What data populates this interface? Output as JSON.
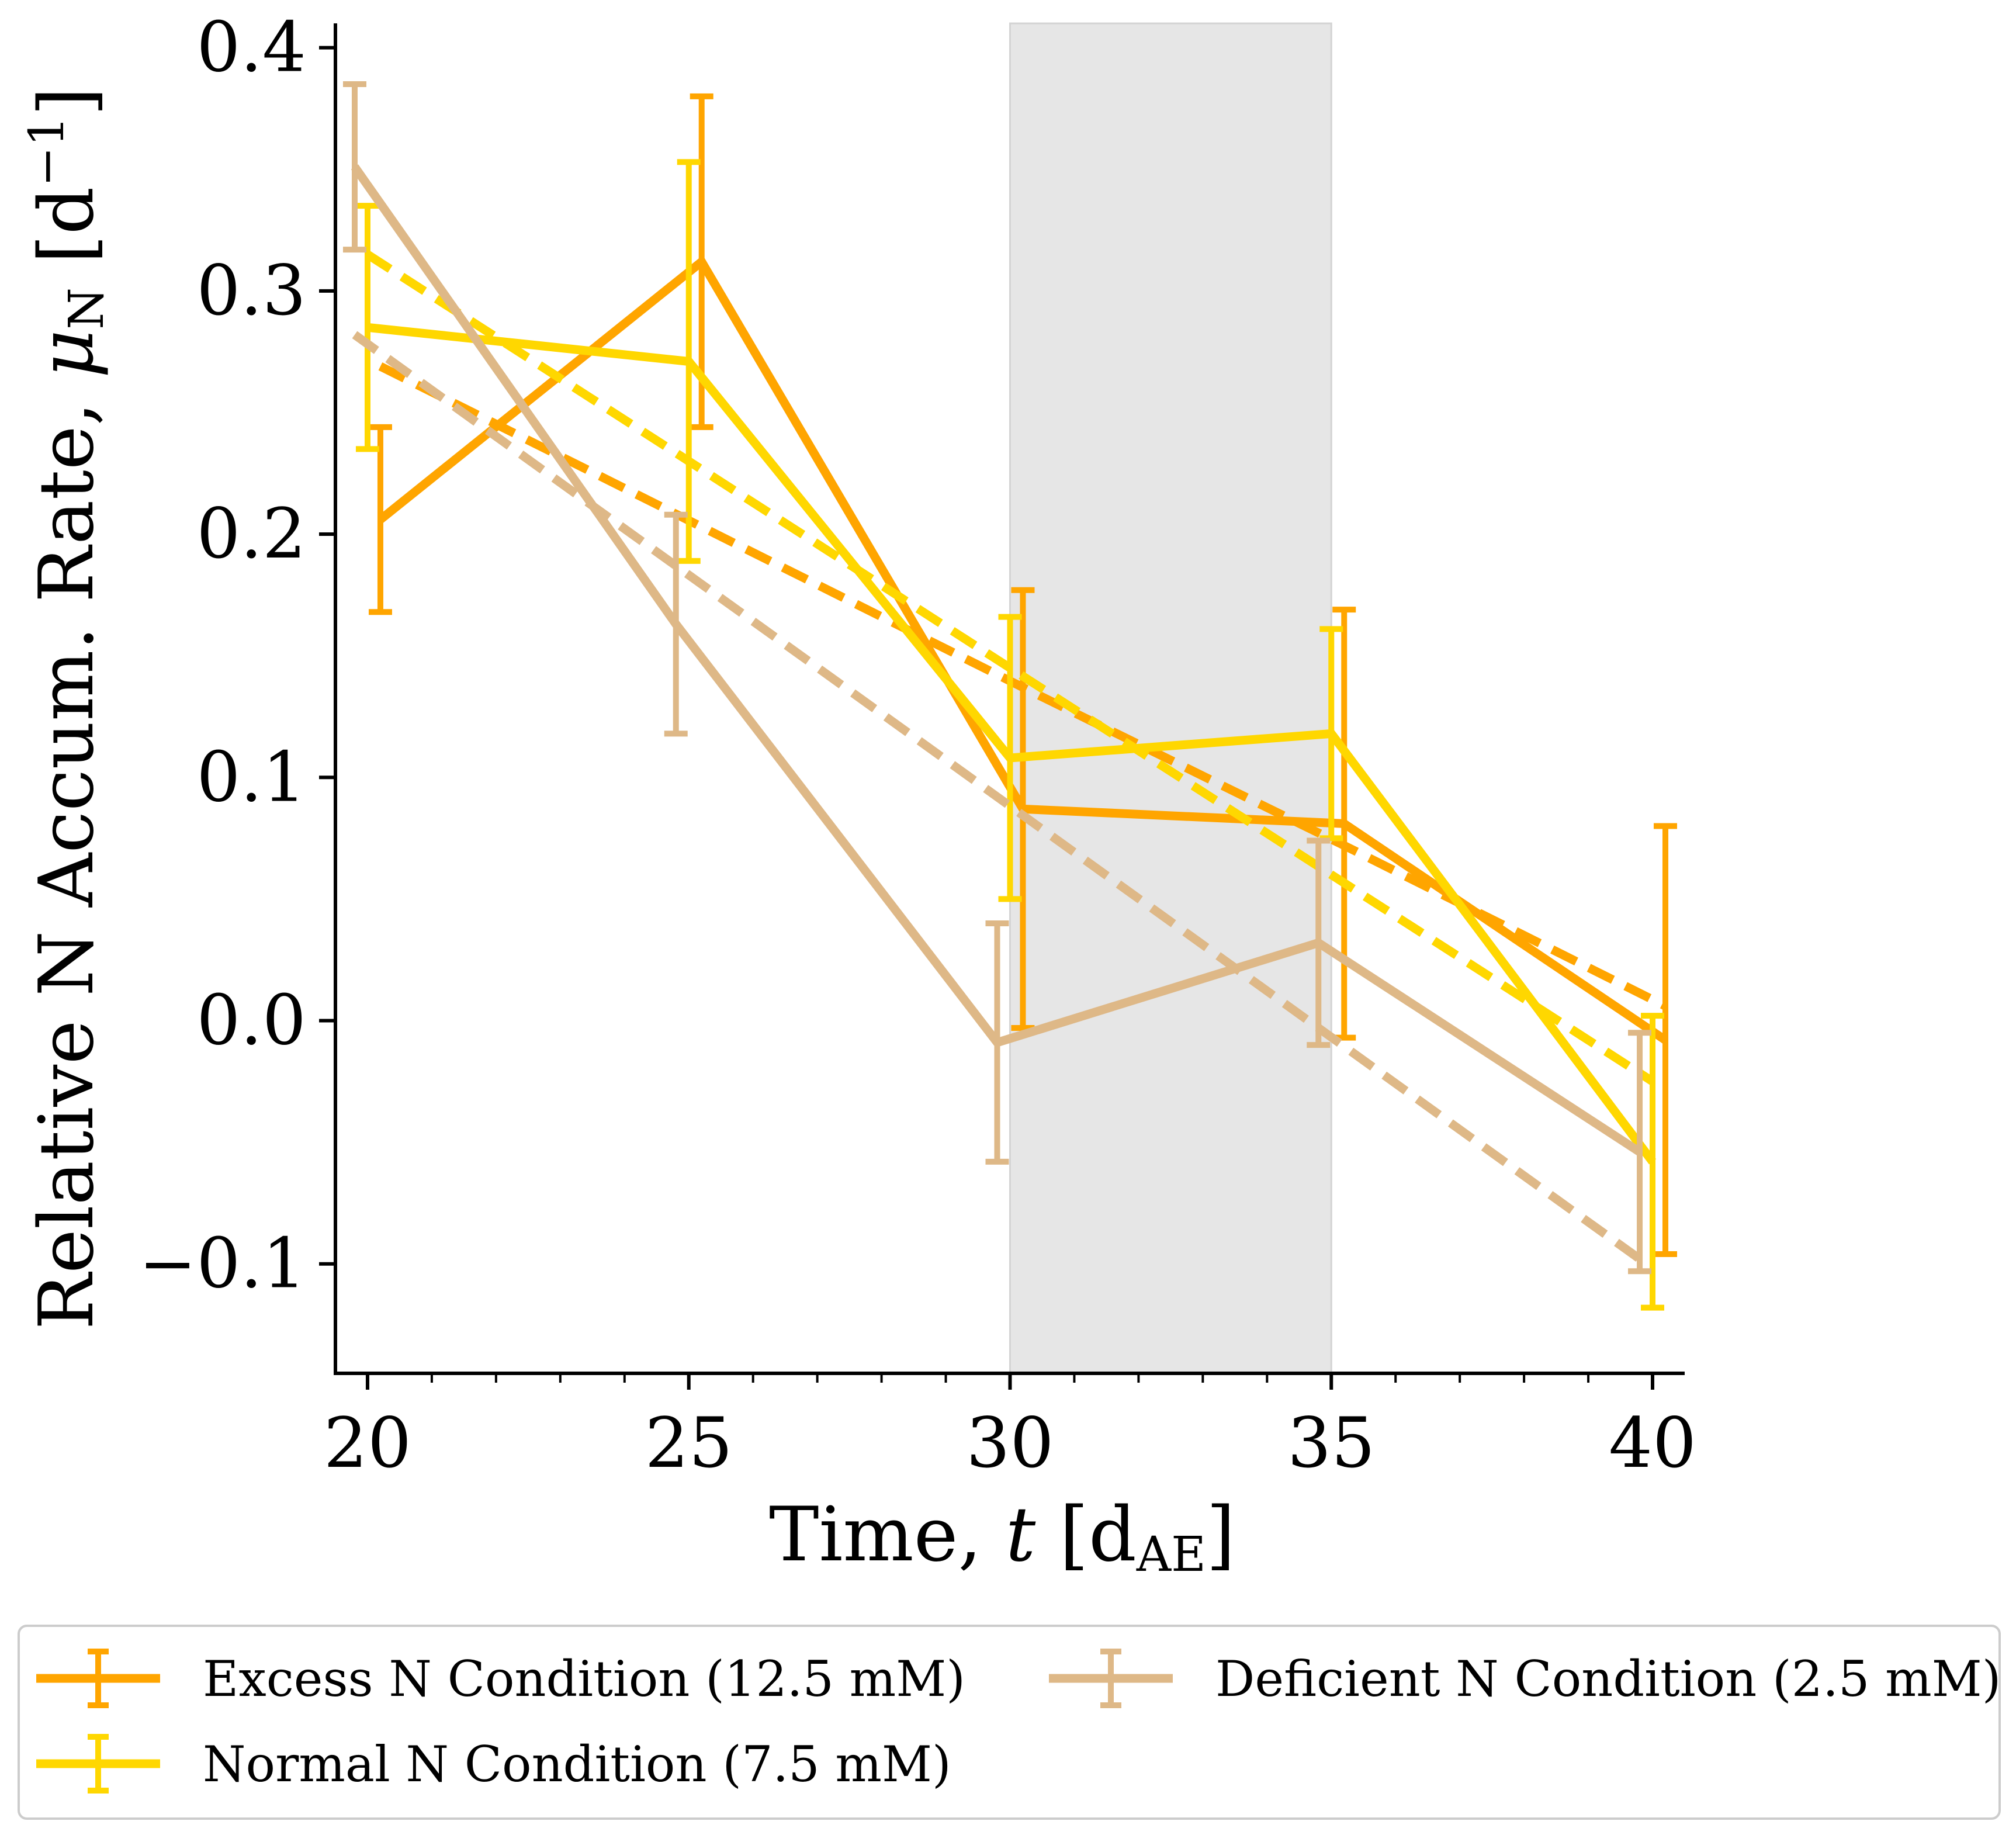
{
  "chart_data": {
    "type": "line",
    "title": "",
    "xlabel_parts": [
      "Time, ",
      "t",
      " [d",
      "AE",
      "]"
    ],
    "ylabel_parts": [
      "Relative N Accum. Rate, ",
      "μ",
      "N",
      " [d",
      "−1",
      "]"
    ],
    "xlim": [
      19.5,
      40.5
    ],
    "ylim": [
      -0.145,
      0.41
    ],
    "x_ticks": [
      20,
      25,
      30,
      35,
      40
    ],
    "x_tick_labels": [
      "20",
      "25",
      "30",
      "35",
      "40"
    ],
    "x_minor_ticks": [
      21,
      22,
      23,
      24,
      26,
      27,
      28,
      29,
      31,
      32,
      33,
      34,
      36,
      37,
      38,
      39
    ],
    "y_ticks": [
      0.4,
      0.3,
      0.2,
      0.1,
      0.0,
      -0.1
    ],
    "y_tick_labels": [
      "0.4",
      "0.3",
      "0.2",
      "0.1",
      "0.0",
      "−0.1"
    ],
    "shaded_region": {
      "x": [
        30,
        35
      ],
      "color": "#e6e6e6"
    },
    "grid": false,
    "legend_placement": "below plot, 2 columns",
    "series": [
      {
        "name": "Excess N Condition (12.5 mM)",
        "color": "#ffa500",
        "x": [
          20.2,
          25.2,
          30.2,
          35.2,
          40.2
        ],
        "y": [
          0.206,
          0.312,
          0.087,
          0.081,
          -0.008
        ],
        "yerr": [
          0.038,
          0.068,
          0.09,
          0.088,
          0.088
        ],
        "fit": {
          "x": [
            20.2,
            25.2,
            30.2,
            35.2,
            40.2
          ],
          "y": [
            0.269,
            0.203,
            0.137,
            0.072,
            0.006
          ]
        }
      },
      {
        "name": "Normal N Condition (7.5 mM)",
        "color": "#ffd700",
        "x": [
          20.0,
          25.0,
          30.0,
          35.0,
          40.0
        ],
        "y": [
          0.285,
          0.271,
          0.108,
          0.118,
          -0.058
        ],
        "yerr": [
          0.05,
          0.082,
          0.058,
          0.043,
          0.06
        ],
        "fit": {
          "x": [
            20.0,
            25.0,
            30.0,
            35.0,
            40.0
          ],
          "y": [
            0.315,
            0.23,
            0.145,
            0.06,
            -0.025
          ]
        }
      },
      {
        "name": "Deficient N Condition (2.5 mM)",
        "color": "#deb887",
        "x": [
          19.8,
          24.8,
          29.8,
          34.8,
          39.8
        ],
        "y": [
          0.351,
          0.163,
          -0.009,
          0.032,
          -0.054
        ],
        "yerr": [
          0.034,
          0.045,
          0.049,
          0.042,
          0.049
        ],
        "fit": {
          "x": [
            19.8,
            24.8,
            29.8,
            34.8,
            39.8
          ],
          "y": [
            0.282,
            0.187,
            0.092,
            -0.003,
            -0.098
          ]
        }
      }
    ]
  }
}
